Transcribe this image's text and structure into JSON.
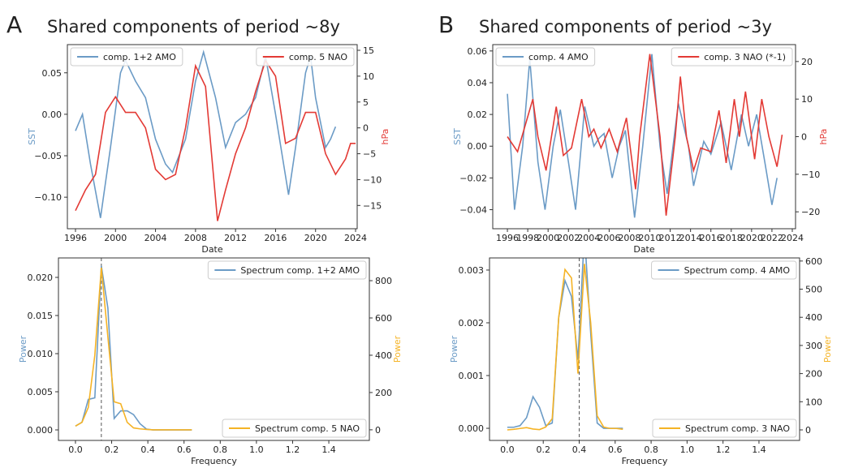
{
  "panels": [
    {
      "label": "A",
      "title": "Shared components of period ~8y"
    },
    {
      "label": "B",
      "title": "Shared components of period ~3y"
    }
  ],
  "chart_data": [
    {
      "type": "line",
      "xlabel": "Date",
      "ylabel": "SST",
      "y2label": "hPa",
      "xlim": [
        1995.19,
        2024.16
      ],
      "ylim": [
        -0.138,
        0.084
      ],
      "y2lim": [
        -19.5,
        16.1
      ],
      "xticks": [
        1996,
        2000,
        2004,
        2008,
        2012,
        2016,
        2020,
        2024
      ],
      "yticks": [
        {
          "value": -0.1,
          "label": "−0.10"
        },
        {
          "value": -0.05,
          "label": "−0.05"
        },
        {
          "value": 0,
          "label": "0.00"
        },
        0.05
      ],
      "y2ticks": [
        {
          "value": -15,
          "label": "−15"
        },
        {
          "value": -10,
          "label": "−10"
        },
        {
          "value": -5,
          "label": "−5"
        },
        0,
        5,
        10,
        15
      ],
      "series": [
        {
          "name": "comp. 1+2 AMO",
          "color": "#6b9bc6",
          "axis": "y",
          "legend": "upper left",
          "x": [
            1996,
            1996.7,
            1997.5,
            1998.5,
            1999.5,
            2000.5,
            2001,
            2002,
            2003,
            2004,
            2005,
            2005.7,
            2007,
            2008,
            2008.8,
            2010,
            2011,
            2012,
            2013,
            2014,
            2015,
            2016,
            2017.3,
            2018,
            2019,
            2019.5,
            2020,
            2021,
            2021.5,
            2022
          ],
          "values": [
            -0.02,
            0.0,
            -0.06,
            -0.125,
            -0.04,
            0.05,
            0.065,
            0.04,
            0.02,
            -0.03,
            -0.06,
            -0.07,
            -0.03,
            0.04,
            0.075,
            0.02,
            -0.04,
            -0.01,
            0.0,
            0.02,
            0.07,
            0.0,
            -0.097,
            -0.04,
            0.05,
            0.07,
            0.02,
            -0.04,
            -0.03,
            -0.015
          ]
        },
        {
          "name": "comp. 5 NAO",
          "color": "#e33a35",
          "axis": "y2",
          "legend": "upper right",
          "x": [
            1996,
            1997,
            1998,
            1999,
            2000,
            2001,
            2002,
            2003,
            2004,
            2005,
            2006,
            2007,
            2008,
            2009,
            2010.2,
            2011,
            2012,
            2013,
            2014,
            2015,
            2016,
            2017,
            2018,
            2019,
            2020,
            2021,
            2022,
            2023,
            2023.5,
            2024
          ],
          "values": [
            -16,
            -12,
            -9,
            3,
            6,
            3,
            3,
            0,
            -8,
            -10,
            -9,
            0,
            12,
            8,
            -18,
            -12,
            -5,
            0,
            7,
            13,
            10,
            -3,
            -2,
            3,
            3,
            -5,
            -9,
            -6,
            -3,
            -3
          ]
        }
      ]
    },
    {
      "type": "line",
      "xlabel": "Frequency",
      "ylabel": "Power",
      "y2label": "Power",
      "xlim": [
        -0.094,
        1.624
      ],
      "ylim": [
        -0.00138,
        0.02255
      ],
      "y2lim": [
        -57,
        922
      ],
      "xticks": [
        {
          "value": 0,
          "label": "0.0"
        },
        0.2,
        0.4,
        0.6,
        0.8,
        {
          "value": 1,
          "label": "1.0"
        },
        1.2,
        1.4
      ],
      "yticks": [
        {
          "value": 0,
          "label": "0.000"
        },
        0.005,
        {
          "value": 0.01,
          "label": "0.010"
        },
        0.015,
        {
          "value": 0.02,
          "label": "0.020"
        }
      ],
      "y2ticks": [
        0,
        200,
        400,
        600,
        800
      ],
      "vline": 0.143,
      "series": [
        {
          "name": "Spectrum comp. 1+2 AMO",
          "color": "#6b9bc6",
          "axis": "y",
          "legend": "upper right",
          "x": [
            0,
            0.036,
            0.071,
            0.107,
            0.143,
            0.179,
            0.214,
            0.25,
            0.286,
            0.321,
            0.357,
            0.393,
            0.429,
            0.5,
            0.571,
            0.643
          ],
          "values": [
            0.0005,
            0.001,
            0.004,
            0.0042,
            0.0215,
            0.016,
            0.0015,
            0.0025,
            0.0025,
            0.002,
            0.0008,
            0.0001,
            0,
            0,
            0,
            0
          ]
        },
        {
          "name": "Spectrum comp. 5 NAO",
          "color": "#f5b325",
          "axis": "y2",
          "legend": "lower right",
          "x": [
            0,
            0.036,
            0.071,
            0.107,
            0.143,
            0.179,
            0.214,
            0.25,
            0.286,
            0.321,
            0.357,
            0.393,
            0.429,
            0.5,
            0.571,
            0.643
          ],
          "values": [
            20,
            40,
            120,
            400,
            870,
            500,
            150,
            140,
            40,
            10,
            5,
            2,
            0,
            0,
            0,
            0
          ]
        }
      ]
    },
    {
      "type": "line",
      "xlabel": "Date",
      "ylabel": "SST",
      "y2label": "hPa",
      "xlim": [
        1994.56,
        2024.32
      ],
      "ylim": [
        -0.052,
        0.064
      ],
      "y2lim": [
        -24.5,
        24.5
      ],
      "xticks": [
        1996,
        1998,
        2000,
        2002,
        2004,
        2006,
        2008,
        2010,
        2012,
        2014,
        2016,
        2018,
        2020,
        2022,
        2024
      ],
      "yticks": [
        {
          "value": -0.04,
          "label": "−0.04"
        },
        {
          "value": -0.02,
          "label": "−0.02"
        },
        {
          "value": 0,
          "label": "0.00"
        },
        0.02,
        0.04,
        0.06
      ],
      "y2ticks": [
        {
          "value": -20,
          "label": "−20"
        },
        {
          "value": -10,
          "label": "−10"
        },
        0,
        10,
        20
      ],
      "series": [
        {
          "name": "comp. 4 AMO",
          "color": "#6b9bc6",
          "axis": "y",
          "legend": "upper left",
          "x": [
            1996,
            1996.7,
            1997.5,
            1998.2,
            1999,
            1999.7,
            2000.5,
            2001.2,
            2002,
            2002.7,
            2003.6,
            2004.5,
            2005,
            2005.5,
            2006.3,
            2007,
            2007.6,
            2008.5,
            2009.3,
            2010.2,
            2011,
            2011.7,
            2012.8,
            2013.8,
            2014.3,
            2015.3,
            2016,
            2017,
            2018,
            2019,
            2019.7,
            2020.5,
            2021.3,
            2022,
            2022.5
          ],
          "values": [
            0.033,
            -0.04,
            0.0,
            0.055,
            -0.01,
            -0.04,
            0.0,
            0.023,
            -0.01,
            -0.04,
            0.025,
            0.0,
            0.005,
            0.008,
            -0.02,
            0.0,
            0.01,
            -0.045,
            0.0,
            0.058,
            0.0,
            -0.03,
            0.027,
            0.0,
            -0.025,
            0.003,
            -0.005,
            0.015,
            -0.015,
            0.02,
            0.0,
            0.02,
            -0.01,
            -0.037,
            -0.02
          ]
        },
        {
          "name": "comp. 3 NAO (*-1)",
          "color": "#e33a35",
          "axis": "y2",
          "legend": "upper right",
          "x": [
            1996,
            1997,
            1998.5,
            1999,
            1999.8,
            2000.8,
            2001.5,
            2002.3,
            2003.3,
            2004,
            2004.5,
            2005.2,
            2006,
            2006.8,
            2007.7,
            2008.6,
            2009,
            2010,
            2011,
            2011.6,
            2012.5,
            2013,
            2013.6,
            2014.3,
            2015,
            2016,
            2016.8,
            2017.5,
            2018.3,
            2018.8,
            2019.4,
            2020.3,
            2021,
            2021.7,
            2022.5,
            2023
          ],
          "values": [
            0,
            -4,
            10,
            0,
            -9,
            8,
            -5,
            -3,
            10,
            0,
            2,
            -3,
            2,
            -4,
            5,
            -14,
            0,
            22,
            0,
            -21,
            0,
            16,
            0,
            -9,
            -3,
            -4,
            7,
            -7,
            10,
            0,
            12,
            -6,
            10,
            0,
            -8,
            0.5
          ]
        }
      ]
    },
    {
      "type": "line",
      "xlabel": "Frequency",
      "ylabel": "Power",
      "y2label": "Power",
      "xlim": [
        -0.099,
        1.626
      ],
      "ylim": [
        -0.00023,
        0.00323
      ],
      "y2lim": [
        -37.5,
        611
      ],
      "xticks": [
        {
          "value": 0,
          "label": "0.0"
        },
        0.2,
        0.4,
        0.6,
        0.8,
        {
          "value": 1,
          "label": "1.0"
        },
        1.2,
        1.4
      ],
      "yticks": [
        {
          "value": 0,
          "label": "0.000"
        },
        0.001,
        0.002,
        0.003
      ],
      "y2ticks": [
        0,
        100,
        200,
        300,
        400,
        500,
        600
      ],
      "vline": 0.4,
      "series": [
        {
          "name": "Spectrum comp. 4 AMO",
          "color": "#6b9bc6",
          "axis": "y",
          "legend": "upper right",
          "x": [
            0,
            0.036,
            0.071,
            0.107,
            0.143,
            0.179,
            0.214,
            0.25,
            0.286,
            0.321,
            0.357,
            0.393,
            0.429,
            0.464,
            0.5,
            0.536,
            0.571,
            0.607,
            0.643
          ],
          "values": [
            2e-05,
            2e-05,
            5e-05,
            0.0002,
            0.0006,
            0.0004,
            5e-05,
            0.0001,
            0.0021,
            0.0028,
            0.0025,
            0.0013,
            0.0037,
            0.0018,
            0.0001,
            0,
            0,
            0,
            0
          ]
        },
        {
          "name": "Spectrum comp. 3 NAO",
          "color": "#f5b325",
          "axis": "y2",
          "legend": "lower right",
          "x": [
            0,
            0.036,
            0.071,
            0.107,
            0.143,
            0.179,
            0.214,
            0.25,
            0.286,
            0.321,
            0.357,
            0.393,
            0.429,
            0.464,
            0.5,
            0.536,
            0.571,
            0.607,
            0.643
          ],
          "values": [
            0,
            2,
            5,
            8,
            3,
            1,
            10,
            40,
            400,
            570,
            540,
            200,
            590,
            380,
            50,
            10,
            5,
            5,
            2
          ]
        }
      ]
    }
  ]
}
